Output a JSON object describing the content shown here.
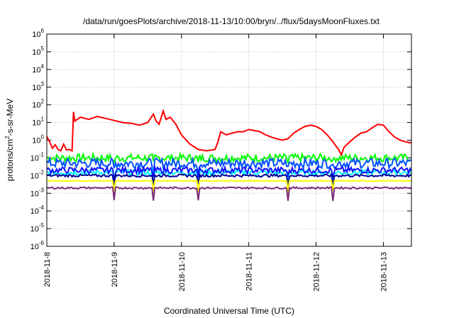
{
  "chart_data": {
    "type": "line",
    "title": "/data/run/goesPlots/archive/2018-11-13/10:00/bryn/../flux/5daysMoonFluxes.txt",
    "xlabel": "Coordinated Universal Time (UTC)",
    "ylabel": {
      "pre": "protons/cm",
      "sup": "2",
      "post": "-s-sr-MeV"
    },
    "x_scale": "time",
    "xlim": [
      "2018-11-08T00:00",
      "2018-11-13T10:00"
    ],
    "x_ticks": [
      "2018-11-8",
      "2018-11-9",
      "2018-11-10",
      "2018-11-11",
      "2018-11-12",
      "2018-11-13"
    ],
    "y_scale": "log",
    "ylim": [
      1e-06,
      1000000.0
    ],
    "y_ticks": [
      {
        "base": "10",
        "exp": "-6"
      },
      {
        "base": "10",
        "exp": "-5"
      },
      {
        "base": "10",
        "exp": "-4"
      },
      {
        "base": "10",
        "exp": "-3"
      },
      {
        "base": "10",
        "exp": "-2"
      },
      {
        "base": "10",
        "exp": "-1"
      },
      {
        "base": "10",
        "exp": "0"
      },
      {
        "base": "10",
        "exp": "1"
      },
      {
        "base": "10",
        "exp": "2"
      },
      {
        "base": "10",
        "exp": "3"
      },
      {
        "base": "10",
        "exp": "4"
      },
      {
        "base": "10",
        "exp": "5"
      },
      {
        "base": "10",
        "exp": "6"
      }
    ],
    "grid": true,
    "legend": "none",
    "series": [
      {
        "color": "#ff0000",
        "points": [
          [
            "2018-11-08T00:00",
            1.6
          ],
          [
            "2018-11-08T01:00",
            0.8
          ],
          [
            "2018-11-08T02:00",
            0.35
          ],
          [
            "2018-11-08T03:00",
            0.55
          ],
          [
            "2018-11-08T04:00",
            0.3
          ],
          [
            "2018-11-08T05:00",
            0.25
          ],
          [
            "2018-11-08T06:00",
            0.6
          ],
          [
            "2018-11-08T07:00",
            0.28
          ],
          [
            "2018-11-08T08:00",
            0.3
          ],
          [
            "2018-11-08T09:00",
            0.25
          ],
          [
            "2018-11-08T09:30",
            40
          ],
          [
            "2018-11-08T10:00",
            12
          ],
          [
            "2018-11-08T12:00",
            20
          ],
          [
            "2018-11-08T15:00",
            15
          ],
          [
            "2018-11-08T18:00",
            22
          ],
          [
            "2018-11-08T21:00",
            17
          ],
          [
            "2018-11-09T00:00",
            13
          ],
          [
            "2018-11-09T03:00",
            10
          ],
          [
            "2018-11-09T06:00",
            9
          ],
          [
            "2018-11-09T09:00",
            7
          ],
          [
            "2018-11-09T12:00",
            10
          ],
          [
            "2018-11-09T14:00",
            30
          ],
          [
            "2018-11-09T15:00",
            12
          ],
          [
            "2018-11-09T16:00",
            8
          ],
          [
            "2018-11-09T17:30",
            45
          ],
          [
            "2018-11-09T18:30",
            15
          ],
          [
            "2018-11-09T20:00",
            20
          ],
          [
            "2018-11-09T22:00",
            8
          ],
          [
            "2018-11-10T00:00",
            2
          ],
          [
            "2018-11-10T03:00",
            0.6
          ],
          [
            "2018-11-10T06:00",
            0.3
          ],
          [
            "2018-11-10T09:00",
            0.25
          ],
          [
            "2018-11-10T12:00",
            0.3
          ],
          [
            "2018-11-10T13:00",
            0.8
          ],
          [
            "2018-11-10T14:00",
            3
          ],
          [
            "2018-11-10T16:00",
            2
          ],
          [
            "2018-11-10T18:00",
            2.5
          ],
          [
            "2018-11-10T20:00",
            3
          ],
          [
            "2018-11-10T22:00",
            3
          ],
          [
            "2018-11-11T00:00",
            4
          ],
          [
            "2018-11-11T02:00",
            3.5
          ],
          [
            "2018-11-11T04:00",
            3
          ],
          [
            "2018-11-11T06:00",
            2
          ],
          [
            "2018-11-11T08:00",
            1.5
          ],
          [
            "2018-11-11T10:00",
            1.2
          ],
          [
            "2018-11-11T12:00",
            1
          ],
          [
            "2018-11-11T14:00",
            1.2
          ],
          [
            "2018-11-11T16:00",
            2.5
          ],
          [
            "2018-11-11T18:00",
            4
          ],
          [
            "2018-11-11T20:00",
            6
          ],
          [
            "2018-11-11T22:00",
            7
          ],
          [
            "2018-11-12T00:00",
            6
          ],
          [
            "2018-11-12T02:00",
            4
          ],
          [
            "2018-11-12T04:00",
            2
          ],
          [
            "2018-11-12T06:00",
            0.8
          ],
          [
            "2018-11-12T08:00",
            0.3
          ],
          [
            "2018-11-12T09:00",
            0.15
          ],
          [
            "2018-11-12T10:00",
            0.4
          ],
          [
            "2018-11-12T12:00",
            0.8
          ],
          [
            "2018-11-12T14:00",
            1.5
          ],
          [
            "2018-11-12T16:00",
            2.5
          ],
          [
            "2018-11-12T18:00",
            3
          ],
          [
            "2018-11-12T20:00",
            5
          ],
          [
            "2018-11-12T22:00",
            8
          ],
          [
            "2018-11-13T00:00",
            7
          ],
          [
            "2018-11-13T02:00",
            3
          ],
          [
            "2018-11-13T04:00",
            1.5
          ],
          [
            "2018-11-13T06:00",
            1
          ],
          [
            "2018-11-13T08:00",
            0.8
          ],
          [
            "2018-11-13T10:00",
            0.7
          ]
        ]
      },
      {
        "color": "#00ff00",
        "level": 0.1,
        "spread": 0.45,
        "dips": 0.25
      },
      {
        "color": "#0050ff",
        "level": 0.05,
        "spread": 0.55,
        "dips": 0.3
      },
      {
        "color": "#00ffff",
        "level": 0.015,
        "spread": 0.3,
        "dips": 0.4
      },
      {
        "color": "#1010ff",
        "level": 0.02,
        "spread": 0.35,
        "dips": 0.4
      },
      {
        "color": "#000099",
        "level": 0.01,
        "spread": 0.15,
        "dips": 0.6
      },
      {
        "color": "#ffff00",
        "level": 0.005,
        "spread": 0.05,
        "dips": 0.8
      },
      {
        "color": "#7a2a7a",
        "level": 0.002,
        "spread": 0.1,
        "dips": 1.0
      }
    ],
    "dip_times": [
      "2018-11-09T00:00",
      "2018-11-09T14:00",
      "2018-11-10T06:00",
      "2018-11-11T14:00",
      "2018-11-12T06:00"
    ]
  }
}
